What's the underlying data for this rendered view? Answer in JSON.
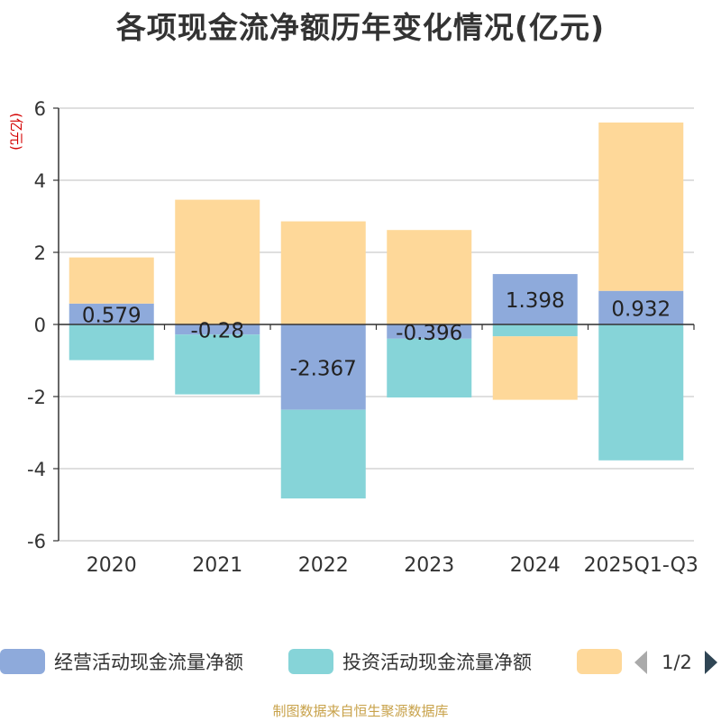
{
  "chart_data": {
    "type": "bar",
    "stacked": true,
    "title": "各项现金流净额历年变化情况(亿元)",
    "ylabel": "(亿元)",
    "xlabel": "",
    "ylim": [
      -6,
      6
    ],
    "yticks": [
      6,
      4,
      2,
      0,
      -2,
      -4,
      -6
    ],
    "categories": [
      "2020",
      "2021",
      "2022",
      "2023",
      "2024",
      "2025Q1-Q3"
    ],
    "series": [
      {
        "name": "经营活动现金流量净额",
        "color": "#8eaadb",
        "values": [
          0.579,
          -0.28,
          -2.367,
          -0.396,
          1.398,
          0.932
        ],
        "labels": [
          "0.579",
          "-0.28",
          "-2.367",
          "-0.396",
          "1.398",
          "0.932"
        ]
      },
      {
        "name": "投资活动现金流量净额",
        "color": "#86d4d8",
        "values": [
          -0.99,
          -1.66,
          -2.46,
          -1.63,
          -0.33,
          -3.77
        ]
      },
      {
        "name": "",
        "color": "#fed899",
        "values": [
          1.28,
          3.46,
          2.86,
          2.62,
          -1.76,
          4.67
        ]
      }
    ],
    "legend_position": "bottom",
    "grid": true
  },
  "legend": {
    "page_indicator": "1/2",
    "prev_label": "previous legend page",
    "next_label": "next legend page"
  },
  "footer": {
    "source": "制图数据来自恒生聚源数据库"
  }
}
